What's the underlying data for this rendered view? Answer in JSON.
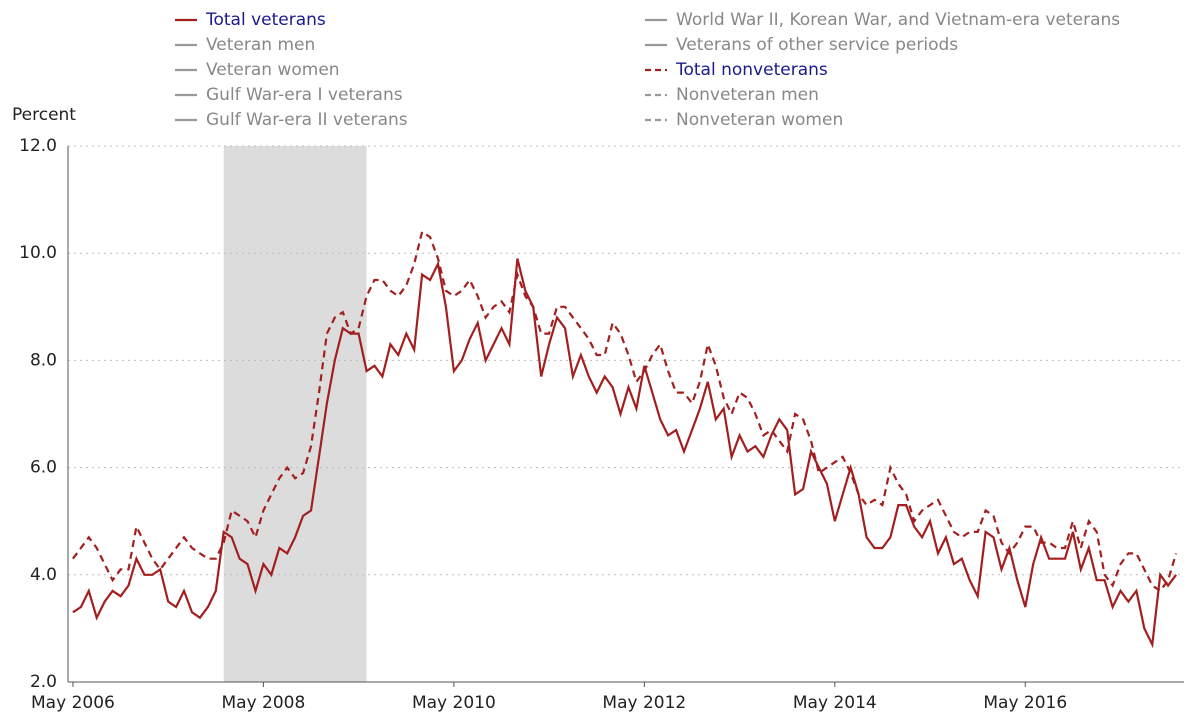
{
  "chart_data": {
    "type": "line",
    "y_label": "Percent",
    "x": [
      "2006-05",
      "2006-06",
      "2006-07",
      "2006-08",
      "2006-09",
      "2006-10",
      "2006-11",
      "2006-12",
      "2007-01",
      "2007-02",
      "2007-03",
      "2007-04",
      "2007-05",
      "2007-06",
      "2007-07",
      "2007-08",
      "2007-09",
      "2007-10",
      "2007-11",
      "2007-12",
      "2008-01",
      "2008-02",
      "2008-03",
      "2008-04",
      "2008-05",
      "2008-06",
      "2008-07",
      "2008-08",
      "2008-09",
      "2008-10",
      "2008-11",
      "2008-12",
      "2009-01",
      "2009-02",
      "2009-03",
      "2009-04",
      "2009-05",
      "2009-06",
      "2009-07",
      "2009-08",
      "2009-09",
      "2009-10",
      "2009-11",
      "2009-12",
      "2010-01",
      "2010-02",
      "2010-03",
      "2010-04",
      "2010-05",
      "2010-06",
      "2010-07",
      "2010-08",
      "2010-09",
      "2010-10",
      "2010-11",
      "2010-12",
      "2011-01",
      "2011-02",
      "2011-03",
      "2011-04",
      "2011-05",
      "2011-06",
      "2011-07",
      "2011-08",
      "2011-09",
      "2011-10",
      "2011-11",
      "2011-12",
      "2012-01",
      "2012-02",
      "2012-03",
      "2012-04",
      "2012-05",
      "2012-06",
      "2012-07",
      "2012-08",
      "2012-09",
      "2012-10",
      "2012-11",
      "2012-12",
      "2013-01",
      "2013-02",
      "2013-03",
      "2013-04",
      "2013-05",
      "2013-06",
      "2013-07",
      "2013-08",
      "2013-09",
      "2013-10",
      "2013-11",
      "2013-12",
      "2014-01",
      "2014-02",
      "2014-03",
      "2014-04",
      "2014-05",
      "2014-06",
      "2014-07",
      "2014-08",
      "2014-09",
      "2014-10",
      "2014-11",
      "2014-12",
      "2015-01",
      "2015-02",
      "2015-03",
      "2015-04",
      "2015-05",
      "2015-06",
      "2015-07",
      "2015-08",
      "2015-09",
      "2015-10",
      "2015-11",
      "2015-12",
      "2016-01",
      "2016-02",
      "2016-03",
      "2016-04",
      "2016-05",
      "2016-06",
      "2016-07",
      "2016-08",
      "2016-09",
      "2016-10",
      "2016-11",
      "2016-12",
      "2017-01",
      "2017-02",
      "2017-03",
      "2017-04",
      "2017-05",
      "2017-06",
      "2017-07",
      "2017-08",
      "2017-09",
      "2017-10",
      "2017-11",
      "2017-12"
    ],
    "series": [
      {
        "name": "Total veterans",
        "color": "#a31f1f",
        "dash": false,
        "visible": true,
        "values": [
          3.3,
          3.4,
          3.7,
          3.2,
          3.5,
          3.7,
          3.6,
          3.8,
          4.3,
          4.0,
          4.0,
          4.1,
          3.5,
          3.4,
          3.7,
          3.3,
          3.2,
          3.4,
          3.7,
          4.8,
          4.7,
          4.3,
          4.2,
          3.7,
          4.2,
          4.0,
          4.5,
          4.4,
          4.7,
          5.1,
          5.2,
          6.2,
          7.2,
          8.0,
          8.6,
          8.5,
          8.5,
          7.8,
          7.9,
          7.7,
          8.3,
          8.1,
          8.5,
          8.2,
          9.6,
          9.5,
          9.8,
          9.0,
          7.8,
          8.0,
          8.4,
          8.7,
          8.0,
          8.3,
          8.6,
          8.3,
          9.9,
          9.3,
          9.0,
          7.7,
          8.3,
          8.8,
          8.6,
          7.7,
          8.1,
          7.7,
          7.4,
          7.7,
          7.5,
          7.0,
          7.5,
          7.1,
          7.9,
          7.4,
          6.9,
          6.6,
          6.7,
          6.3,
          6.7,
          7.1,
          7.6,
          6.9,
          7.1,
          6.2,
          6.6,
          6.3,
          6.4,
          6.2,
          6.6,
          6.9,
          6.7,
          5.5,
          5.6,
          6.3,
          6.0,
          5.7,
          5.0,
          5.5,
          6.0,
          5.5,
          4.7,
          4.5,
          4.5,
          4.7,
          5.3,
          5.3,
          4.9,
          4.7,
          5.0,
          4.4,
          4.7,
          4.2,
          4.3,
          3.9,
          3.6,
          4.8,
          4.7,
          4.1,
          4.5,
          3.9,
          3.4,
          4.2,
          4.7,
          4.3,
          4.3,
          4.3,
          4.8,
          4.1,
          4.5,
          3.9,
          3.9,
          3.4,
          3.7,
          3.5,
          3.7,
          3.0,
          2.7,
          4.0,
          3.8,
          4.0
        ]
      },
      {
        "name": "Veteran men",
        "color": "#999999",
        "dash": false,
        "visible": false
      },
      {
        "name": "Veteran women",
        "color": "#999999",
        "dash": false,
        "visible": false
      },
      {
        "name": "Gulf War-era I veterans",
        "color": "#999999",
        "dash": false,
        "visible": false
      },
      {
        "name": "Gulf War-era II veterans",
        "color": "#999999",
        "dash": false,
        "visible": false
      },
      {
        "name": "World War II, Korean War, and Vietnam-era veterans",
        "color": "#999999",
        "dash": false,
        "visible": false
      },
      {
        "name": "Veterans of other service periods",
        "color": "#999999",
        "dash": false,
        "visible": false
      },
      {
        "name": "Total nonveterans",
        "color": "#a31f1f",
        "dash": true,
        "visible": true,
        "values": [
          4.3,
          4.5,
          4.7,
          4.5,
          4.2,
          3.9,
          4.1,
          4.1,
          4.9,
          4.6,
          4.3,
          4.1,
          4.3,
          4.5,
          4.7,
          4.5,
          4.4,
          4.3,
          4.3,
          4.6,
          5.2,
          5.1,
          5.0,
          4.7,
          5.2,
          5.5,
          5.8,
          6.0,
          5.8,
          5.9,
          6.4,
          7.4,
          8.5,
          8.8,
          8.9,
          8.5,
          8.6,
          9.2,
          9.5,
          9.5,
          9.3,
          9.2,
          9.4,
          9.8,
          10.4,
          10.3,
          9.9,
          9.3,
          9.2,
          9.3,
          9.5,
          9.2,
          8.8,
          9.0,
          9.1,
          8.9,
          9.6,
          9.2,
          9.0,
          8.5,
          8.5,
          9.0,
          9.0,
          8.8,
          8.6,
          8.4,
          8.1,
          8.1,
          8.7,
          8.5,
          8.1,
          7.6,
          7.8,
          8.1,
          8.3,
          7.8,
          7.4,
          7.4,
          7.2,
          7.6,
          8.3,
          7.9,
          7.3,
          7.0,
          7.4,
          7.3,
          7.0,
          6.6,
          6.7,
          6.5,
          6.3,
          7.0,
          6.9,
          6.5,
          5.9,
          6.0,
          6.1,
          6.2,
          5.9,
          5.5,
          5.3,
          5.4,
          5.3,
          6.0,
          5.7,
          5.5,
          5.0,
          5.2,
          5.3,
          5.4,
          5.1,
          4.8,
          4.7,
          4.8,
          4.8,
          5.2,
          5.1,
          4.6,
          4.4,
          4.6,
          4.9,
          4.9,
          4.6,
          4.6,
          4.5,
          4.5,
          5.0,
          4.5,
          5.0,
          4.8,
          4.0,
          3.8,
          4.2,
          4.4,
          4.4,
          4.1,
          3.8,
          3.7,
          3.9,
          4.4
        ]
      },
      {
        "name": "Nonveteran men",
        "color": "#999999",
        "dash": true,
        "visible": false
      },
      {
        "name": "Nonveteran women",
        "color": "#999999",
        "dash": true,
        "visible": false
      }
    ],
    "active_legend_color": "#1a1a8c",
    "inactive_legend_color": "#888888",
    "shading": {
      "start": "2007-12",
      "end": "2009-06",
      "color": "#dcdcdc"
    },
    "xlim": [
      "2006-04",
      "2018-01"
    ],
    "xticks": [
      {
        "value": "2006-05",
        "label": "May 2006"
      },
      {
        "value": "2008-05",
        "label": "May 2008"
      },
      {
        "value": "2010-05",
        "label": "May 2010"
      },
      {
        "value": "2012-05",
        "label": "May 2012"
      },
      {
        "value": "2014-05",
        "label": "May 2014"
      },
      {
        "value": "2016-05",
        "label": "May 2016"
      }
    ],
    "ylim": [
      2,
      12
    ],
    "yticks": [
      {
        "value": 2,
        "label": "2.0"
      },
      {
        "value": 4,
        "label": "4.0"
      },
      {
        "value": 6,
        "label": "6.0"
      },
      {
        "value": 8,
        "label": "8.0"
      },
      {
        "value": 10,
        "label": "10.0"
      },
      {
        "value": 12,
        "label": "12.0"
      }
    ],
    "grid": true
  }
}
